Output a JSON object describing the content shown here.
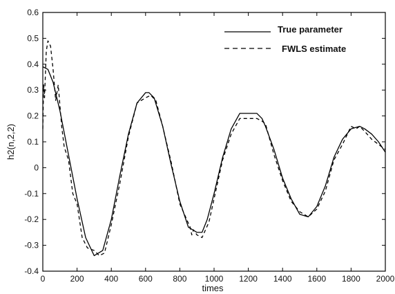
{
  "chart_data": {
    "type": "line",
    "title": "",
    "xlabel": "times",
    "ylabel": "h2(n,2,2)",
    "xlim": [
      0,
      2000
    ],
    "ylim": [
      -0.4,
      0.6
    ],
    "xticks": [
      0,
      200,
      400,
      600,
      800,
      1000,
      1200,
      1400,
      1600,
      1800,
      2000
    ],
    "yticks": [
      -0.4,
      -0.3,
      -0.2,
      -0.1,
      0,
      0.1,
      0.2,
      0.3,
      0.4,
      0.5,
      0.6
    ],
    "grid": false,
    "legend_position": "top-right",
    "series": [
      {
        "name": "True parameter",
        "style": "solid",
        "color": "#000000",
        "x": [
          0,
          30,
          60,
          100,
          150,
          200,
          250,
          300,
          350,
          400,
          450,
          500,
          550,
          600,
          620,
          650,
          700,
          750,
          800,
          850,
          900,
          930,
          960,
          1000,
          1050,
          1100,
          1150,
          1200,
          1250,
          1280,
          1300,
          1350,
          1400,
          1450,
          1500,
          1550,
          1600,
          1650,
          1700,
          1750,
          1800,
          1850,
          1880,
          1920,
          1960,
          2000
        ],
        "y": [
          0.39,
          0.38,
          0.33,
          0.22,
          0.05,
          -0.12,
          -0.27,
          -0.34,
          -0.32,
          -0.2,
          -0.03,
          0.13,
          0.25,
          0.29,
          0.29,
          0.27,
          0.16,
          0.01,
          -0.13,
          -0.23,
          -0.25,
          -0.25,
          -0.2,
          -0.1,
          0.04,
          0.15,
          0.21,
          0.21,
          0.21,
          0.19,
          0.16,
          0.07,
          -0.04,
          -0.12,
          -0.18,
          -0.19,
          -0.15,
          -0.07,
          0.04,
          0.11,
          0.15,
          0.16,
          0.15,
          0.13,
          0.1,
          0.06
        ]
      },
      {
        "name": "FWLS estimate",
        "style": "dashed",
        "color": "#000000",
        "x": [
          0,
          5,
          10,
          20,
          30,
          45,
          60,
          75,
          90,
          100,
          110,
          125,
          150,
          175,
          200,
          230,
          260,
          300,
          330,
          360,
          400,
          450,
          500,
          550,
          600,
          630,
          660,
          700,
          750,
          800,
          860,
          870,
          880,
          900,
          930,
          950,
          970,
          1000,
          1050,
          1100,
          1150,
          1200,
          1250,
          1280,
          1300,
          1350,
          1400,
          1450,
          1500,
          1550,
          1600,
          1650,
          1700,
          1750,
          1800,
          1830,
          1850,
          1880,
          1920,
          1960,
          2000
        ],
        "y": [
          0.15,
          0.32,
          0.27,
          0.45,
          0.49,
          0.47,
          0.38,
          0.26,
          0.32,
          0.24,
          0.16,
          0.08,
          0.03,
          -0.1,
          -0.14,
          -0.27,
          -0.31,
          -0.32,
          -0.34,
          -0.33,
          -0.22,
          -0.06,
          0.12,
          0.25,
          0.27,
          0.28,
          0.26,
          0.16,
          0.02,
          -0.14,
          -0.23,
          -0.26,
          -0.24,
          -0.26,
          -0.27,
          -0.24,
          -0.21,
          -0.12,
          0.03,
          0.13,
          0.19,
          0.19,
          0.19,
          0.18,
          0.17,
          0.05,
          -0.05,
          -0.13,
          -0.17,
          -0.19,
          -0.16,
          -0.09,
          0.03,
          0.09,
          0.16,
          0.15,
          0.16,
          0.14,
          0.11,
          0.09,
          0.07
        ]
      }
    ]
  }
}
